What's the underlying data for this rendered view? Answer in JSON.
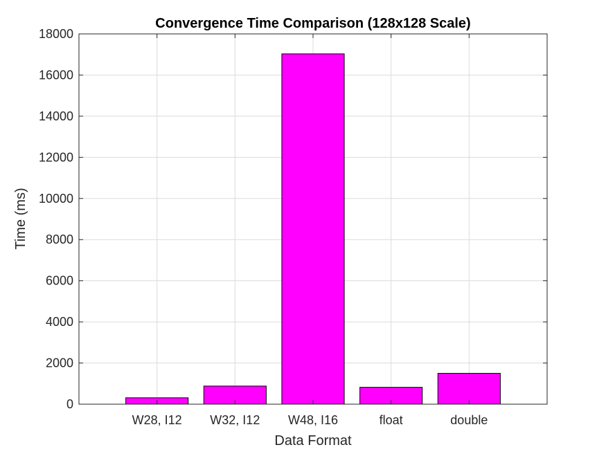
{
  "chart_data": {
    "type": "bar",
    "title": "Convergence Time Comparison (128x128 Scale)",
    "xlabel": "Data Format",
    "ylabel": "Time (ms)",
    "categories": [
      "W28, I12",
      "W32, I12",
      "W48, I16",
      "float",
      "double"
    ],
    "values": [
      310,
      880,
      17030,
      820,
      1500
    ],
    "ylim": [
      0,
      18000
    ],
    "yticks": [
      0,
      2000,
      4000,
      6000,
      8000,
      10000,
      12000,
      14000,
      16000,
      18000
    ],
    "grid": true,
    "bar_color": "#ff00ff",
    "bar_edge_color": "#000000"
  }
}
